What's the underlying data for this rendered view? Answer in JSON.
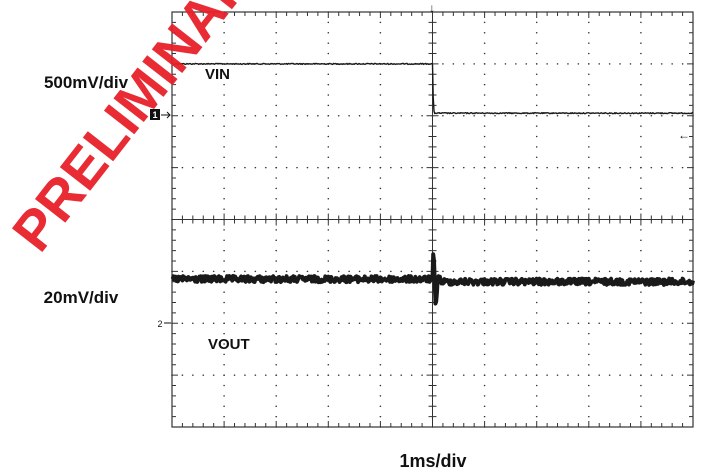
{
  "watermark": {
    "text": "PRELIMINARY — NEW DESIGN",
    "color": "#e8202a"
  },
  "chart_data": {
    "type": "line",
    "title": "",
    "time_scale": "1ms/div",
    "divisions": {
      "x": 10,
      "y": 8,
      "minor_per_div": 5
    },
    "channels": [
      {
        "id": "1",
        "marker": "1",
        "scale": "500mV/div",
        "label": "VIN",
        "description": "input step down at trigger",
        "x_divs": [
          0,
          5.0,
          5.02,
          5.04,
          10
        ],
        "y_divs": [
          1.0,
          1.0,
          1.9,
          1.95,
          1.95
        ],
        "noise_divs": 0.02
      },
      {
        "id": "2",
        "marker": "2",
        "scale": "20mV/div",
        "label": "VOUT",
        "description": "output with transient at trigger",
        "x_divs": [
          0,
          5.0,
          5.02,
          5.06,
          5.1,
          5.18,
          10
        ],
        "y_divs": [
          5.15,
          5.15,
          4.55,
          5.75,
          5.1,
          5.2,
          5.2
        ],
        "noise_divs": 0.12
      }
    ],
    "trigger_marker": "↓",
    "right_marker": "←",
    "grid": true,
    "colors": {
      "trace": "#1a1a1a",
      "grid": "#333333",
      "background": "#ffffff"
    }
  }
}
